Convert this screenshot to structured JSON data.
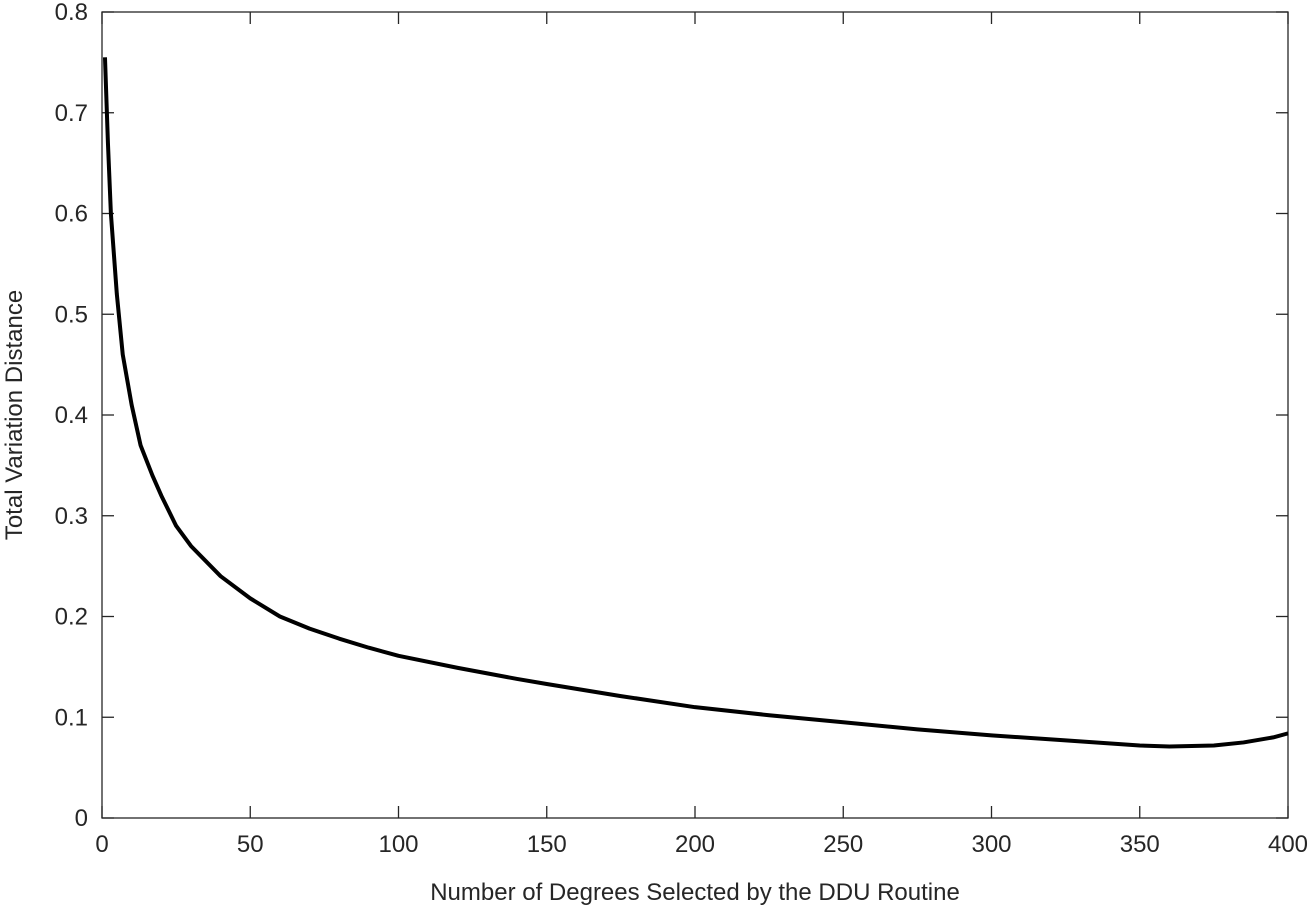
{
  "chart_data": {
    "type": "line",
    "xlabel": "Number of Degrees Selected by the DDU Routine",
    "ylabel": "Total Variation Distance",
    "x": [
      1,
      2,
      3,
      5,
      7,
      10,
      13,
      17,
      20,
      25,
      30,
      40,
      50,
      60,
      70,
      80,
      90,
      100,
      120,
      140,
      150,
      175,
      200,
      225,
      250,
      275,
      300,
      325,
      350,
      360,
      375,
      385,
      395,
      400
    ],
    "values": [
      0.755,
      0.67,
      0.6,
      0.52,
      0.46,
      0.41,
      0.37,
      0.34,
      0.32,
      0.29,
      0.27,
      0.24,
      0.218,
      0.2,
      0.188,
      0.178,
      0.169,
      0.161,
      0.149,
      0.138,
      0.133,
      0.121,
      0.11,
      0.102,
      0.095,
      0.088,
      0.082,
      0.077,
      0.072,
      0.071,
      0.072,
      0.075,
      0.08,
      0.084
    ],
    "color": "#000000",
    "xlim": [
      0,
      400
    ],
    "xticks": [
      0,
      50,
      100,
      150,
      200,
      250,
      300,
      350,
      400
    ],
    "ylim": [
      0,
      0.8
    ],
    "yticks": [
      0,
      0.1,
      0.2,
      0.3,
      0.4,
      0.5,
      0.6,
      0.7,
      0.8
    ],
    "grid": false
  }
}
